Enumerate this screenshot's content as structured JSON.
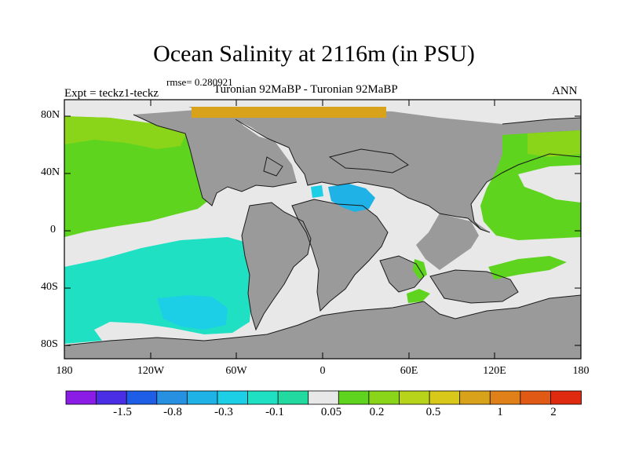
{
  "title": "Ocean Salinity at 2116m (in PSU)",
  "rmse_label": "rmse= 0.280921",
  "experiment_label": "Expt = teckz1-teckz",
  "comparison_label": "Turonian  92MaBP - Turonian  92MaBP",
  "period_label": "ANN",
  "lat_labels": [
    "80N",
    "40N",
    "0",
    "40S",
    "80S"
  ],
  "lon_labels": [
    "180",
    "120W",
    "60W",
    "0",
    "60E",
    "120E",
    "180"
  ],
  "colorbar": {
    "colors": [
      "#8a1ce6",
      "#4a2ee6",
      "#1e5ee6",
      "#2790e0",
      "#1fb2e6",
      "#1ccfe6",
      "#20e0c4",
      "#22d9a0",
      "#e8e8e8",
      "#5ed41e",
      "#8ad419",
      "#b8d41a",
      "#d8c81a",
      "#d8a21a",
      "#e08018",
      "#e05a16",
      "#e02a10"
    ],
    "labels": [
      "-1.5",
      "-0.8",
      "-0.3",
      "-0.1",
      "0.05",
      "0.2",
      "0.5",
      "1",
      "2"
    ]
  },
  "map_colors": {
    "land": "#9a9a9a",
    "ocean_neutral": "#e8e8e8",
    "green": "#5ed41e",
    "light_green": "#8ad419",
    "aqua": "#20e0c4",
    "cyan": "#1ccfe6",
    "blue": "#1fb2e6",
    "orange": "#d8a21a"
  }
}
